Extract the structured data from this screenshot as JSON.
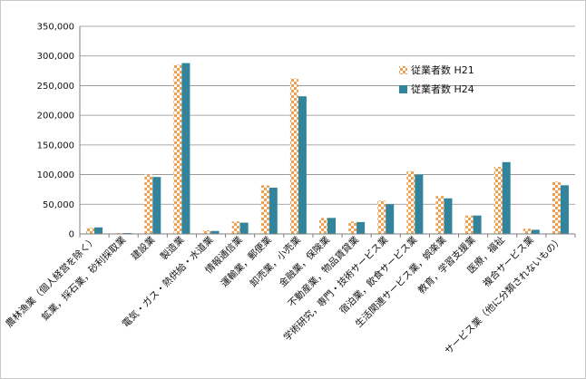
{
  "chart_data": {
    "type": "bar",
    "title": "",
    "xlabel": "",
    "ylabel": "",
    "ylim": [
      0,
      350000
    ],
    "yticks": [
      0,
      50000,
      100000,
      150000,
      200000,
      250000,
      300000,
      350000
    ],
    "ytick_labels": [
      "0",
      "50,000",
      "100,000",
      "150,000",
      "200,000",
      "250,000",
      "300,000",
      "350,000"
    ],
    "grid": true,
    "legend_position": "right",
    "categories": [
      "農林漁業（個人経営を除く）",
      "鉱業，採石業，砂利採取業",
      "建設業",
      "製造業",
      "電気・ガス・熱供給・水道業",
      "情報通信業",
      "運輸業，郵便業",
      "卸売業，小売業",
      "金融業，保険業",
      "不動産業，物品賃貸業",
      "学術研究，専門・技術サービス業",
      "宿泊業，飲食サービス業",
      "生活関連サービス業，娯楽業",
      "教育，学習支援業",
      "医療，福祉",
      "複合サービス業",
      "サービス業（他に分類されないもの）"
    ],
    "series": [
      {
        "name": "従業者数 H21",
        "pattern": "checker",
        "color": "#f0a050",
        "values": [
          10000,
          1500,
          100000,
          285000,
          6000,
          21000,
          82000,
          262000,
          27000,
          21000,
          56000,
          106000,
          64000,
          31000,
          113000,
          9000,
          88000
        ]
      },
      {
        "name": "従業者数 H24",
        "pattern": "solid",
        "color": "#31849b",
        "values": [
          11000,
          1500,
          96000,
          288000,
          5000,
          19000,
          78000,
          232000,
          27000,
          20000,
          50000,
          100000,
          60000,
          31000,
          121000,
          7000,
          82000
        ]
      }
    ]
  }
}
